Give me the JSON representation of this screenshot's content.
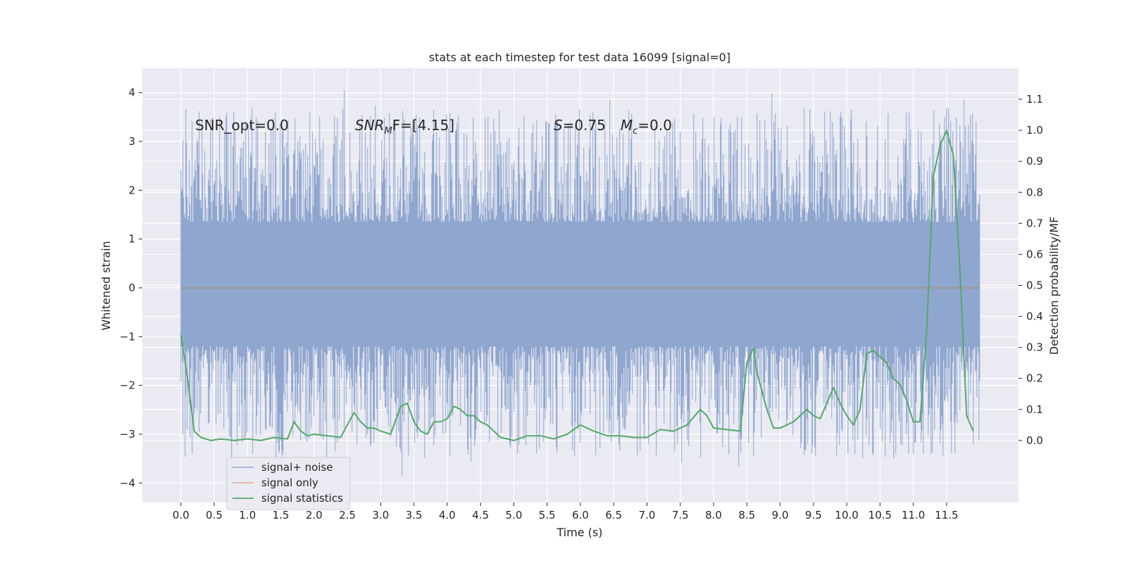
{
  "chart_data": {
    "type": "line",
    "title": "stats at each timestep for test data 16099 [signal=0]",
    "xlabel": "Time (s)",
    "ylabel_left": "Whitened strain",
    "ylabel_right": "Detection probability/MF",
    "xlim": [
      -0.58,
      12.58
    ],
    "ylim_left": [
      -4.4,
      4.5
    ],
    "ylim_right": [
      -0.2,
      1.2
    ],
    "x_ticks": [
      "0.0",
      "0.5",
      "1.0",
      "1.5",
      "2.0",
      "2.5",
      "3.0",
      "3.5",
      "4.0",
      "4.5",
      "5.0",
      "5.5",
      "6.0",
      "6.5",
      "7.0",
      "7.5",
      "8.0",
      "8.5",
      "9.0",
      "9.5",
      "10.0",
      "10.5",
      "11.0",
      "11.5"
    ],
    "y_left_ticks": [
      "4",
      "3",
      "2",
      "1",
      "0",
      "−1",
      "−2",
      "−3",
      "−4"
    ],
    "y_right_ticks": [
      "1.1",
      "1.0",
      "0.9",
      "0.8",
      "0.7",
      "0.6",
      "0.5",
      "0.4",
      "0.3",
      "0.2",
      "0.1",
      "0.0"
    ],
    "annotations": {
      "snr_opt": "SNR_opt=0.0",
      "snr_mf_main": "SNR",
      "snr_mf_sub": "M",
      "snr_mf_rest": "F=[4.15]",
      "s_var": "S",
      "s_value": "=0.75",
      "mc_var": "M",
      "mc_sub": "c",
      "mc_value": "=0.0"
    },
    "legend": {
      "placement": "lower-left",
      "entries": [
        "signal+ noise",
        "signal only",
        "signal statistics"
      ]
    },
    "colors": {
      "noise": "#8fa6cf",
      "signal_only": "#dd8452",
      "statistics": "#55a868",
      "background": "#eaeaf2",
      "grid": "#ffffff"
    },
    "series": [
      {
        "name": "signal+ noise",
        "axis": "left",
        "envelope": {
          "x_start": 0.0,
          "x_end": 12.0,
          "typical_max": 1.35,
          "typical_min": -1.2,
          "peak_max": 4.1,
          "peak_min": -3.9
        }
      },
      {
        "name": "signal only",
        "axis": "left",
        "x": [
          0.0,
          12.0
        ],
        "values": [
          0.0,
          0.0
        ]
      },
      {
        "name": "signal statistics",
        "axis": "right",
        "x": [
          0.0,
          0.1,
          0.2,
          0.3,
          0.45,
          0.6,
          0.8,
          1.0,
          1.2,
          1.4,
          1.6,
          1.7,
          1.8,
          1.9,
          2.0,
          2.2,
          2.4,
          2.6,
          2.7,
          2.8,
          2.9,
          3.0,
          3.15,
          3.3,
          3.4,
          3.5,
          3.6,
          3.7,
          3.8,
          3.9,
          4.0,
          4.1,
          4.2,
          4.3,
          4.4,
          4.5,
          4.6,
          4.8,
          5.0,
          5.2,
          5.4,
          5.6,
          5.8,
          6.0,
          6.2,
          6.4,
          6.6,
          6.8,
          7.0,
          7.2,
          7.4,
          7.6,
          7.8,
          7.9,
          8.0,
          8.2,
          8.4,
          8.5,
          8.6,
          8.65,
          8.8,
          8.9,
          9.0,
          9.2,
          9.4,
          9.5,
          9.6,
          9.7,
          9.8,
          9.9,
          10.0,
          10.1,
          10.2,
          10.3,
          10.4,
          10.45,
          10.6,
          10.7,
          10.8,
          10.9,
          11.0,
          11.1,
          11.2,
          11.3,
          11.4,
          11.5,
          11.6,
          11.7,
          11.8,
          11.9
        ],
        "values": [
          0.34,
          0.2,
          0.03,
          0.01,
          0.0,
          0.005,
          0.0,
          0.005,
          0.0,
          0.01,
          0.005,
          0.06,
          0.03,
          0.015,
          0.02,
          0.015,
          0.01,
          0.09,
          0.06,
          0.04,
          0.04,
          0.03,
          0.02,
          0.11,
          0.12,
          0.06,
          0.03,
          0.02,
          0.06,
          0.06,
          0.07,
          0.11,
          0.1,
          0.08,
          0.08,
          0.06,
          0.05,
          0.01,
          0.0,
          0.015,
          0.015,
          0.005,
          0.02,
          0.05,
          0.03,
          0.015,
          0.015,
          0.01,
          0.01,
          0.035,
          0.03,
          0.05,
          0.1,
          0.08,
          0.04,
          0.035,
          0.03,
          0.25,
          0.3,
          0.22,
          0.1,
          0.04,
          0.04,
          0.06,
          0.1,
          0.08,
          0.07,
          0.12,
          0.17,
          0.12,
          0.08,
          0.05,
          0.1,
          0.28,
          0.29,
          0.28,
          0.25,
          0.2,
          0.18,
          0.13,
          0.06,
          0.06,
          0.35,
          0.85,
          0.95,
          1.0,
          0.92,
          0.55,
          0.08,
          0.03
        ]
      }
    ]
  }
}
